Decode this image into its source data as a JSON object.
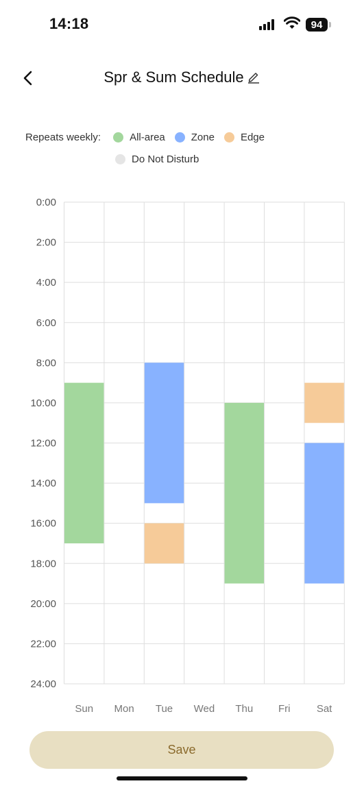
{
  "status_bar": {
    "time": "14:18",
    "battery": "94",
    "icons": [
      "signal-icon",
      "wifi-icon",
      "battery-icon"
    ]
  },
  "header": {
    "title": "Spr & Sum Schedule",
    "back_icon": "chevron-left-icon",
    "edit_icon": "pencil-icon"
  },
  "legend": {
    "label": "Repeats weekly:",
    "items": [
      {
        "label": "All-area",
        "color": "#a3d79d"
      },
      {
        "label": "Zone",
        "color": "#88b2ff"
      },
      {
        "label": "Edge",
        "color": "#f6cb99"
      },
      {
        "label": "Do Not Disturb",
        "color": "#e5e5e5"
      }
    ]
  },
  "chart_data": {
    "type": "schedule",
    "y_ticks": [
      "0:00",
      "2:00",
      "4:00",
      "6:00",
      "8:00",
      "10:00",
      "12:00",
      "14:00",
      "16:00",
      "18:00",
      "20:00",
      "22:00",
      "24:00"
    ],
    "y_range": [
      0,
      24
    ],
    "days": [
      "Sun",
      "Mon",
      "Tue",
      "Wed",
      "Thu",
      "Fri",
      "Sat"
    ],
    "grid": true,
    "blocks": [
      {
        "day": "Sun",
        "start": 9,
        "end": 17,
        "type": "All-area"
      },
      {
        "day": "Tue",
        "start": 8,
        "end": 15,
        "type": "Zone"
      },
      {
        "day": "Tue",
        "start": 16,
        "end": 18,
        "type": "Edge"
      },
      {
        "day": "Thu",
        "start": 10,
        "end": 19,
        "type": "All-area"
      },
      {
        "day": "Sat",
        "start": 9,
        "end": 11,
        "type": "Edge"
      },
      {
        "day": "Sat",
        "start": 12,
        "end": 19,
        "type": "Zone"
      }
    ]
  },
  "save_button": {
    "label": "Save"
  }
}
